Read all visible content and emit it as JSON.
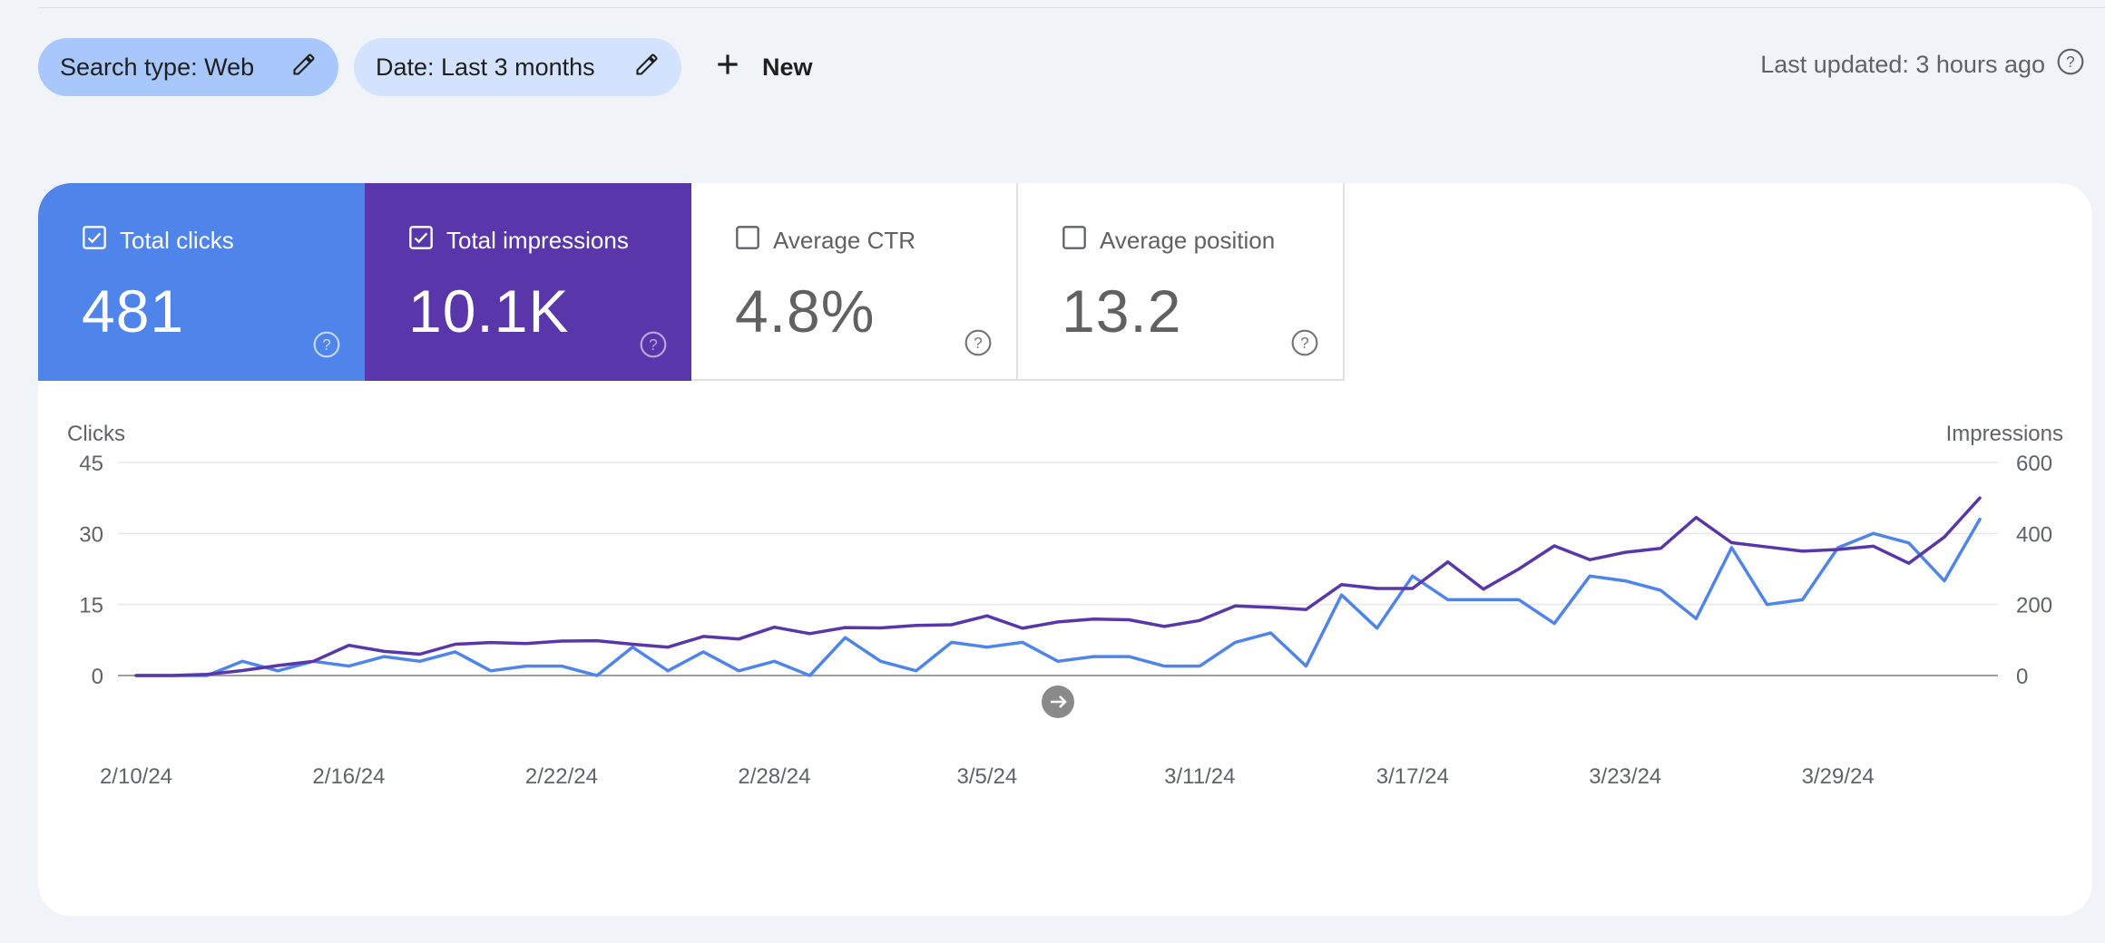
{
  "filters": {
    "search_type": "Search type: Web",
    "date": "Date: Last 3 months",
    "new_label": "New",
    "last_updated": "Last updated: 3 hours ago"
  },
  "metrics": {
    "clicks": {
      "label": "Total clicks",
      "value": "481",
      "checked": true,
      "color": "#4f84eb"
    },
    "impressions": {
      "label": "Total impressions",
      "value": "10.1K",
      "checked": true,
      "color": "#5936aa"
    },
    "ctr": {
      "label": "Average CTR",
      "value": "4.8%",
      "checked": false
    },
    "position": {
      "label": "Average position",
      "value": "13.2",
      "checked": false
    }
  },
  "chart_data": {
    "type": "line",
    "y_left_label": "Clicks",
    "y_right_label": "Impressions",
    "y_left_ticks": [
      0,
      15,
      30,
      45
    ],
    "y_right_ticks": [
      0,
      200,
      400,
      600
    ],
    "ylim_left": [
      0,
      45
    ],
    "ylim_right": [
      0,
      600
    ],
    "x_tick_labels": [
      "2/10/24",
      "2/16/24",
      "2/22/24",
      "2/28/24",
      "3/5/24",
      "3/11/24",
      "3/17/24",
      "3/23/24",
      "3/29/24"
    ],
    "x_tick_index": [
      0,
      6,
      12,
      18,
      24,
      30,
      36,
      42,
      48
    ],
    "grid": true,
    "series": [
      {
        "name": "Clicks",
        "axis": "left",
        "color": "#4f84eb",
        "values": [
          0,
          0,
          0,
          3,
          1,
          3,
          2,
          4,
          3,
          5,
          1,
          2,
          2,
          0,
          6,
          1,
          5,
          1,
          3,
          0,
          8,
          3,
          1,
          7,
          6,
          7,
          3,
          4,
          4,
          2,
          2,
          7,
          9,
          2,
          17,
          10,
          21,
          16,
          16,
          16,
          11,
          21,
          20,
          18,
          12,
          27,
          15,
          16,
          27,
          30,
          28,
          20,
          33
        ]
      },
      {
        "name": "Impressions",
        "axis": "right",
        "color": "#5936aa",
        "values": [
          0,
          0,
          3,
          14,
          28,
          40,
          85,
          68,
          60,
          88,
          93,
          90,
          97,
          98,
          88,
          80,
          110,
          103,
          136,
          118,
          135,
          134,
          141,
          143,
          168,
          133,
          151,
          159,
          157,
          138,
          155,
          196,
          192,
          186,
          256,
          245,
          245,
          320,
          243,
          300,
          365,
          326,
          347,
          358,
          445,
          374,
          362,
          350,
          355,
          364,
          316,
          390,
          500
        ]
      }
    ]
  }
}
